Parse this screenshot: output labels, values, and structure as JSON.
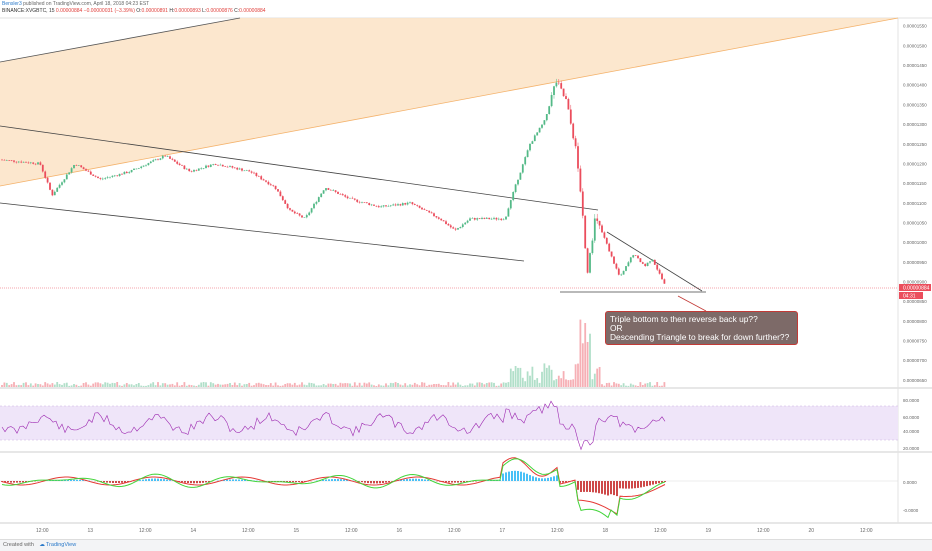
{
  "header": {
    "publisher": "Bensler3",
    "published_text": "published on TradingView.com, April 18, 2018 04:23 EST",
    "symbol": "BINANCE:XVGBTC, 15",
    "last": "0.00000884",
    "change_abs": "−0.00000031 (−3.39%)",
    "ohlc": {
      "o": "0.00000891",
      "h": "0.00000893",
      "l": "0.00000876",
      "c": "0.00000884"
    }
  },
  "price_axis": {
    "labels": [
      "0.00001550",
      "0.00001500",
      "0.00001450",
      "0.00001400",
      "0.00001350",
      "0.00001300",
      "0.00001250",
      "0.00001200",
      "0.00001150",
      "0.00001100",
      "0.00001050",
      "0.00001000",
      "0.00000950",
      "0.00000900",
      "0.00000850",
      "0.00000800",
      "0.00000750",
      "0.00000700",
      "0.00000650"
    ],
    "last_price_tag": "0.00000884",
    "countdown_tag": "04:31"
  },
  "rsi_axis": {
    "labels": [
      "80.0000",
      "60.0000",
      "40.0000",
      "20.0000"
    ]
  },
  "macd_axis": {
    "labels": [
      "0.0000",
      "-0.0000"
    ]
  },
  "time_axis": {
    "labels": [
      "12:00",
      "13",
      "12:00",
      "14",
      "12:00",
      "15",
      "12:00",
      "16",
      "12:00",
      "17",
      "12:00",
      "18",
      "12:00",
      "19",
      "12:00",
      "20",
      "12:00"
    ]
  },
  "annotation": {
    "line1": "Triple bottom to then reverse back up??",
    "line2": "OR",
    "line3": "Descending Triangle to break for down further??"
  },
  "footer": {
    "created_with": "Created with",
    "brand": "TradingView"
  },
  "colors": {
    "bull": "#53b987",
    "bear": "#eb4d5c",
    "channel_fill": "#fce3c6",
    "rsi_band": "#efe5f9",
    "rsi_line": "#9c27b0",
    "annotation_bg": "#7d6a68"
  },
  "chart_data": {
    "type": "candlestick",
    "x_range": [
      "Apr 12 12:00",
      "Apr 20 12:00"
    ],
    "y_range": [
      6.3e-06,
      1.57e-05
    ],
    "key_points": [
      {
        "label": "start",
        "price": 1.21e-05
      },
      {
        "label": "Apr 15 low",
        "price": 1.05e-05
      },
      {
        "label": "Apr 16 low",
        "price": 1.02e-05
      },
      {
        "label": "Apr 17 peak",
        "price": 1.43e-05
      },
      {
        "label": "Apr 17 crash low",
        "price": 9e-06
      },
      {
        "label": "Apr 18 last",
        "price": 8.84e-06
      }
    ]
  }
}
